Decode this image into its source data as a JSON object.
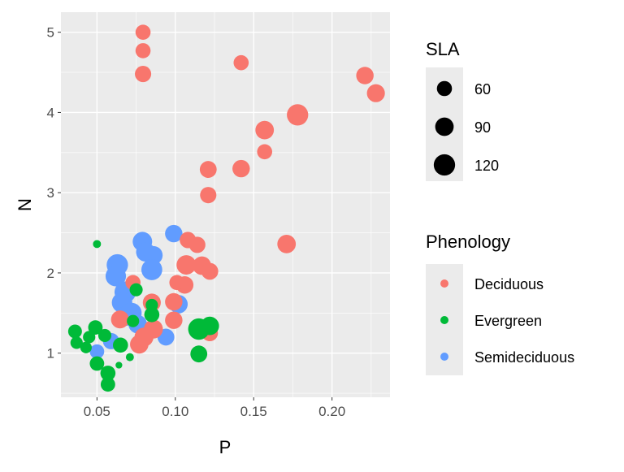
{
  "chart_data": {
    "type": "scatter",
    "xlabel": "P",
    "ylabel": "N",
    "xlim": [
      0.027,
      0.237
    ],
    "ylim": [
      0.45,
      5.25
    ],
    "xticks": [
      0.05,
      0.1,
      0.15,
      0.2
    ],
    "xtick_labels": [
      "0.05",
      "0.10",
      "0.15",
      "0.20"
    ],
    "yticks": [
      1,
      2,
      3,
      4,
      5
    ],
    "ytick_labels": [
      "1",
      "2",
      "3",
      "4",
      "5"
    ],
    "grid": true,
    "size_legend": {
      "title": "SLA",
      "values": [
        60,
        90,
        120
      ],
      "labels": [
        "60",
        "90",
        "120"
      ]
    },
    "color_legend": {
      "title": "Phenology",
      "entries": [
        {
          "label": "Deciduous",
          "color": "#F8766D"
        },
        {
          "label": "Evergreen",
          "color": "#00BA38"
        },
        {
          "label": "Semideciduous",
          "color": "#619CFF"
        }
      ]
    },
    "series": [
      {
        "name": "Semideciduous",
        "color": "#619CFF",
        "points": [
          [
            0.099,
            2.49,
            80
          ],
          [
            0.079,
            2.39,
            100
          ],
          [
            0.081,
            2.26,
            95
          ],
          [
            0.086,
            2.22,
            90
          ],
          [
            0.085,
            2.04,
            115
          ],
          [
            0.063,
            2.1,
            120
          ],
          [
            0.062,
            1.96,
            110
          ],
          [
            0.068,
            1.76,
            120
          ],
          [
            0.066,
            1.63,
            110
          ],
          [
            0.068,
            1.46,
            100
          ],
          [
            0.094,
            1.2,
            75
          ],
          [
            0.059,
            1.15,
            70
          ],
          [
            0.05,
            1.02,
            55
          ],
          [
            0.102,
            1.61,
            90
          ],
          [
            0.076,
            1.36,
            90
          ],
          [
            0.072,
            1.5,
            110
          ]
        ]
      },
      {
        "name": "Deciduous",
        "color": "#F8766D",
        "points": [
          [
            0.0794,
            5.0,
            60
          ],
          [
            0.0794,
            4.77,
            60
          ],
          [
            0.0794,
            4.48,
            70
          ],
          [
            0.142,
            4.62,
            60
          ],
          [
            0.221,
            4.46,
            80
          ],
          [
            0.228,
            4.24,
            85
          ],
          [
            0.178,
            3.97,
            120
          ],
          [
            0.157,
            3.78,
            90
          ],
          [
            0.157,
            3.51,
            60
          ],
          [
            0.121,
            3.29,
            75
          ],
          [
            0.142,
            3.3,
            80
          ],
          [
            0.121,
            2.97,
            70
          ],
          [
            0.171,
            2.36,
            90
          ],
          [
            0.108,
            2.41,
            70
          ],
          [
            0.114,
            2.35,
            70
          ],
          [
            0.107,
            2.1,
            100
          ],
          [
            0.117,
            2.09,
            90
          ],
          [
            0.122,
            2.02,
            75
          ],
          [
            0.106,
            1.85,
            80
          ],
          [
            0.101,
            1.88,
            60
          ],
          [
            0.099,
            1.64,
            80
          ],
          [
            0.099,
            1.41,
            80
          ],
          [
            0.122,
            1.25,
            70
          ],
          [
            0.0647,
            1.42,
            85
          ],
          [
            0.077,
            1.11,
            90
          ],
          [
            0.086,
            1.3,
            95
          ],
          [
            0.073,
            1.88,
            60
          ],
          [
            0.085,
            1.63,
            85
          ],
          [
            0.08,
            1.2,
            95
          ]
        ]
      },
      {
        "name": "Evergreen",
        "color": "#00BA38",
        "points": [
          [
            0.05,
            2.36,
            17
          ],
          [
            0.115,
            1.3,
            120
          ],
          [
            0.122,
            1.34,
            90
          ],
          [
            0.115,
            0.99,
            75
          ],
          [
            0.075,
            1.79,
            45
          ],
          [
            0.085,
            1.6,
            40
          ],
          [
            0.085,
            1.48,
            60
          ],
          [
            0.036,
            1.27,
            50
          ],
          [
            0.037,
            1.13,
            40
          ],
          [
            0.049,
            1.32,
            55
          ],
          [
            0.043,
            1.07,
            35
          ],
          [
            0.05,
            0.87,
            55
          ],
          [
            0.057,
            0.75,
            60
          ],
          [
            0.057,
            0.61,
            55
          ],
          [
            0.064,
            0.85,
            12
          ],
          [
            0.071,
            0.95,
            17
          ],
          [
            0.073,
            1.4,
            40
          ],
          [
            0.065,
            1.1,
            60
          ],
          [
            0.055,
            1.22,
            45
          ],
          [
            0.045,
            1.2,
            40
          ]
        ]
      }
    ]
  }
}
